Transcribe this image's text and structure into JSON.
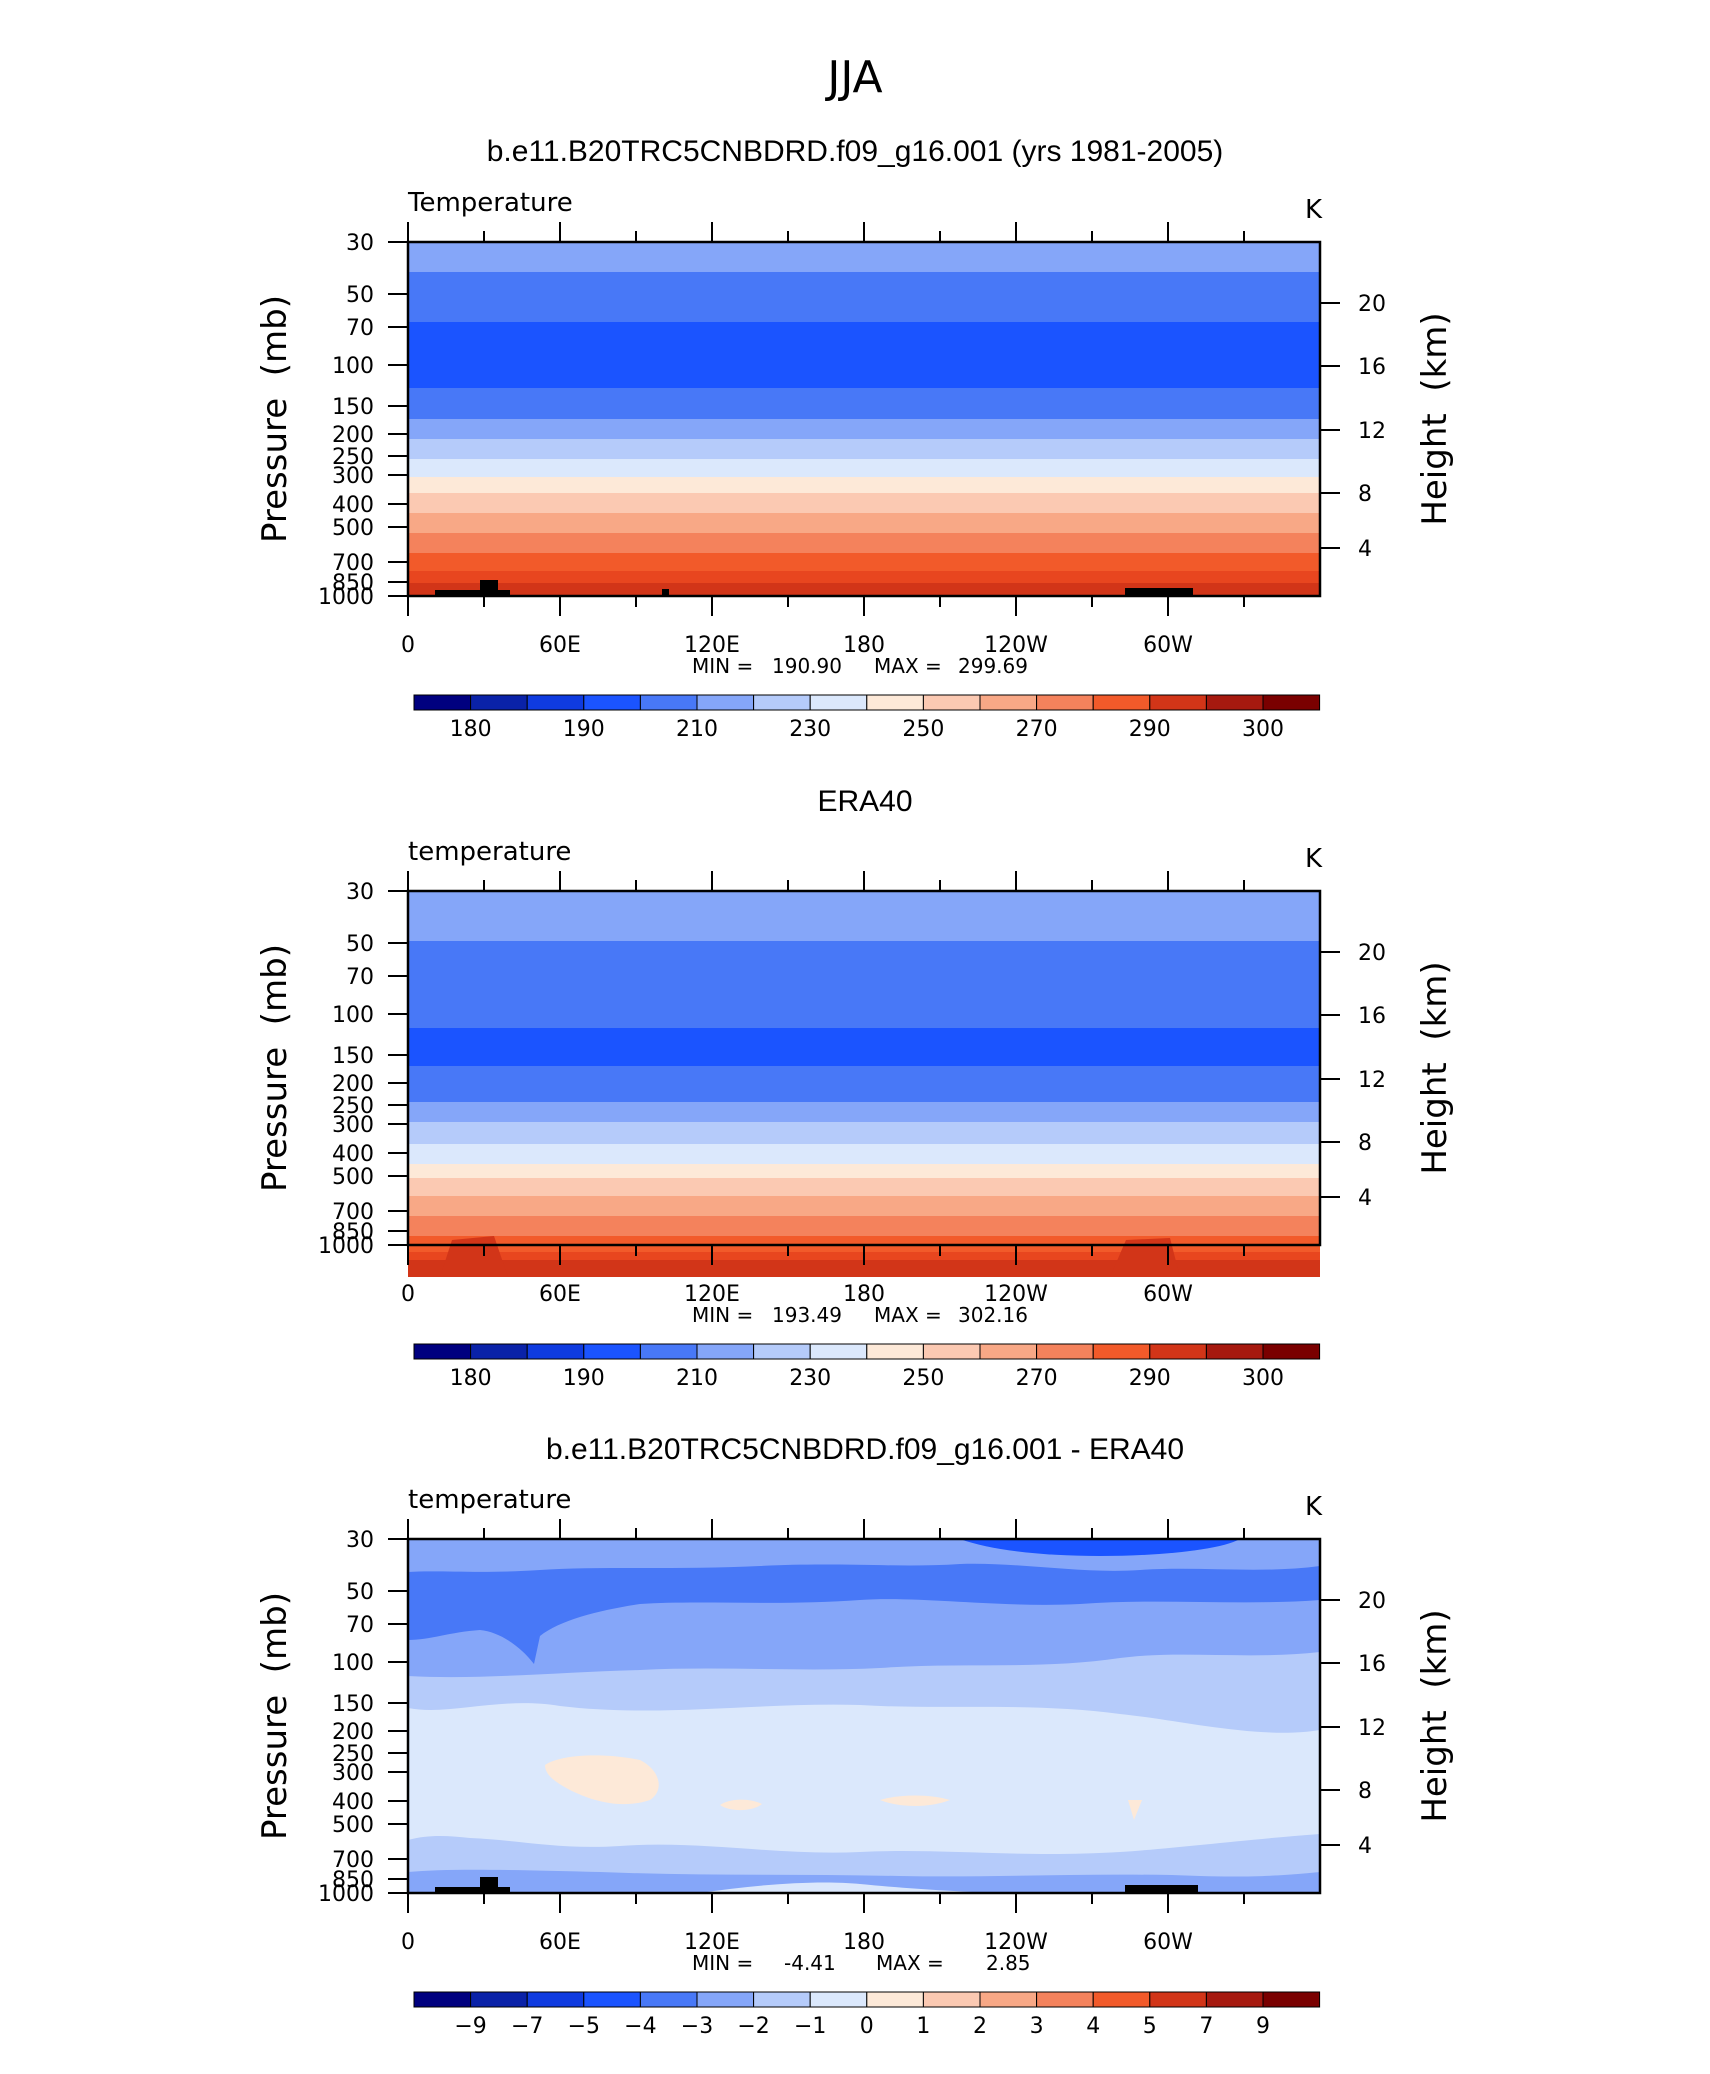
{
  "figure_title": "JJA",
  "colors": {
    "temperature_scale": [
      "#00007f",
      "#0a22a8",
      "#0f3be0",
      "#1b54ff",
      "#4878f7",
      "#85a6f9",
      "#b5cbfa",
      "#dbe8fc",
      "#fde9d8",
      "#fbc9b2",
      "#f8a886",
      "#f4825c",
      "#f25a2a",
      "#d23518",
      "#a6190f",
      "#7a0000"
    ],
    "difference_scale": [
      "#00007f",
      "#0a22a8",
      "#0f3be0",
      "#1b54ff",
      "#4878f7",
      "#85a6f9",
      "#b5cbfa",
      "#dbe8fc",
      "#fde9d8",
      "#fbc9b2",
      "#f8a886",
      "#f4825c",
      "#f25a2a",
      "#d23518",
      "#a6190f",
      "#7a0000"
    ]
  },
  "chart_data": [
    {
      "type": "heatmap",
      "title": "b.e11.B20TRC5CNBDRD.f09_g16.001 (yrs 1981-2005)",
      "left_label": "Temperature",
      "units": "K",
      "ylabel": "Pressure  (mb)",
      "y2label": "Height  (km)",
      "yticks": [
        "30",
        "50",
        "70",
        "100",
        "150",
        "200",
        "250",
        "300",
        "400",
        "500",
        "700",
        "850",
        "1000"
      ],
      "y2ticks": [
        "20",
        "16",
        "12",
        "8",
        "4"
      ],
      "xticks": [
        "0",
        "60E",
        "120E",
        "180",
        "120W",
        "60W"
      ],
      "stats": {
        "min_label": "MIN =",
        "min": "190.90",
        "max_label": "MAX =",
        "max": "299.69"
      },
      "colorbar_labels": [
        "180",
        "190",
        "210",
        "230",
        "250",
        "270",
        "290",
        "300"
      ],
      "bands_top_to_bottom": [
        220,
        210,
        200,
        195,
        200,
        210,
        220,
        230,
        240,
        250,
        255,
        260,
        265,
        270,
        275,
        280,
        285,
        290,
        295
      ]
    },
    {
      "type": "heatmap",
      "title": "ERA40",
      "left_label": "temperature",
      "units": "K",
      "ylabel": "Pressure  (mb)",
      "y2label": "Height  (km)",
      "yticks": [
        "30",
        "50",
        "70",
        "100",
        "150",
        "200",
        "250",
        "300",
        "400",
        "500",
        "700",
        "850",
        "1000"
      ],
      "y2ticks": [
        "20",
        "16",
        "12",
        "8",
        "4"
      ],
      "xticks": [
        "0",
        "60E",
        "120E",
        "180",
        "120W",
        "60W"
      ],
      "stats": {
        "min_label": "MIN =",
        "min": "193.49",
        "max_label": "MAX =",
        "max": "302.16"
      },
      "colorbar_labels": [
        "180",
        "190",
        "210",
        "230",
        "250",
        "270",
        "290",
        "300"
      ],
      "bands_top_to_bottom": [
        220,
        210,
        200,
        195,
        200,
        210,
        220,
        230,
        240,
        250,
        255,
        260,
        265,
        270,
        275,
        280,
        285,
        290,
        295
      ]
    },
    {
      "type": "heatmap",
      "title": "b.e11.B20TRC5CNBDRD.f09_g16.001 - ERA40",
      "left_label": "temperature",
      "units": "K",
      "ylabel": "Pressure  (mb)",
      "y2label": "Height  (km)",
      "yticks": [
        "30",
        "50",
        "70",
        "100",
        "150",
        "200",
        "250",
        "300",
        "400",
        "500",
        "700",
        "850",
        "1000"
      ],
      "y2ticks": [
        "20",
        "16",
        "12",
        "8",
        "4"
      ],
      "xticks": [
        "0",
        "60E",
        "120E",
        "180",
        "120W",
        "60W"
      ],
      "stats": {
        "min_label": "MIN =",
        "min": "-4.41",
        "max_label": "MAX =",
        "max": "2.85"
      },
      "colorbar_labels": [
        "−9",
        "−7",
        "−5",
        "−4",
        "−3",
        "−2",
        "−1",
        "0",
        "1",
        "2",
        "3",
        "4",
        "5",
        "7",
        "9"
      ],
      "bands_top_to_bottom": [
        -4,
        -3,
        -2,
        -1,
        0,
        -1
      ]
    }
  ]
}
